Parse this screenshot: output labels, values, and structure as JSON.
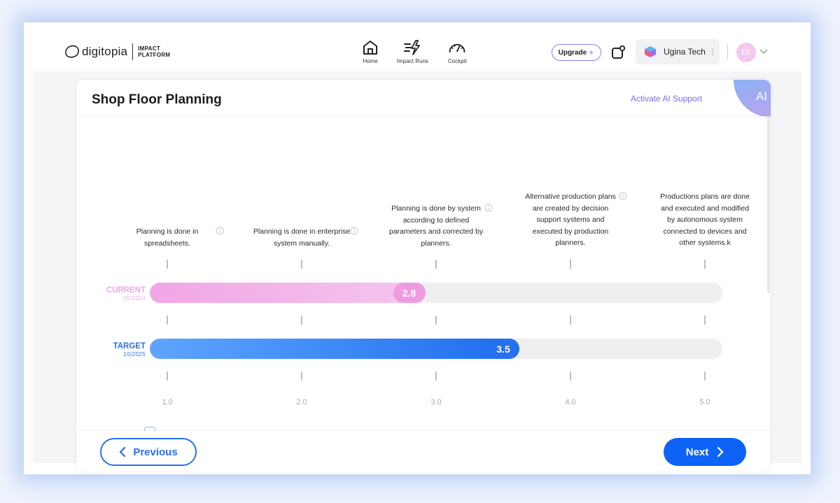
{
  "header": {
    "logo_text": "digitopia",
    "logo_sub_line1": "IMPACT",
    "logo_sub_line2": "PLATFORM",
    "nav": [
      {
        "label": "Home",
        "icon": "home-icon"
      },
      {
        "label": "Impact Runs",
        "icon": "impact-runs-icon"
      },
      {
        "label": "Cockpit",
        "icon": "cockpit-icon"
      }
    ],
    "upgrade_label": "Upgrade",
    "org_name": "Ugina Tech",
    "avatar_initials": "EE"
  },
  "card": {
    "title": "Shop Floor Planning",
    "ai_support_label": "Activate AI Support",
    "ai_badge": "AI"
  },
  "levels": [
    {
      "value": 1.0,
      "axis_label": "1.0",
      "text": "Planning is done in spreadsheets."
    },
    {
      "value": 2.0,
      "axis_label": "2.0",
      "text": "Planning is done in enterprise system manually."
    },
    {
      "value": 3.0,
      "axis_label": "3.0",
      "text": "Planning is done by system according to defined parameters and corrected by planners."
    },
    {
      "value": 4.0,
      "axis_label": "4.0",
      "text": "Alternative production plans are created by decision support systems and executed by production planners."
    },
    {
      "value": 5.0,
      "axis_label": "5.0",
      "text": "Productions plans are done and executed and modified by autonomous system connected to devices and other systems.k"
    }
  ],
  "bars": {
    "current": {
      "label": "CURRENT",
      "date": "05/2024",
      "value": 2.8,
      "value_label": "2.8",
      "color": "#ef9be1"
    },
    "target": {
      "label": "TARGET",
      "date": "10/2025",
      "value": 3.5,
      "value_label": "3.5",
      "color": "#2670f0"
    }
  },
  "footer": {
    "previous_label": "Previous",
    "next_label": "Next"
  }
}
